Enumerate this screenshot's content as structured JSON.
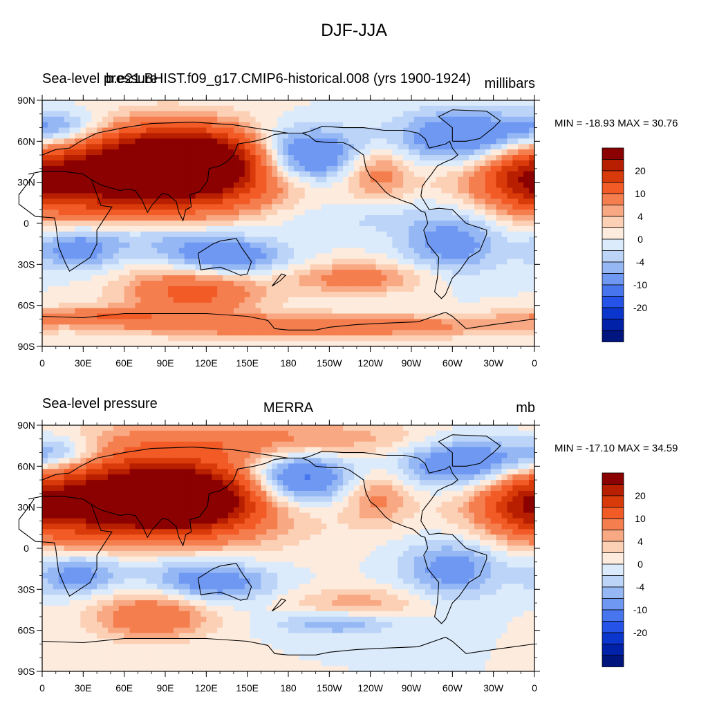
{
  "main_title": "DJF-JJA",
  "panels": [
    {
      "left_title": "Sea-level pressure",
      "center_title": "b.e21.BHIST.f09_g17.CMIP6-historical.008 (yrs 1900-1924)",
      "units": "millibars",
      "min_max": "MIN = -18.93 MAX =  30.76"
    },
    {
      "left_title": "Sea-level pressure",
      "center_title": "MERRA",
      "units": "mb",
      "min_max": "MIN = -17.10 MAX =  34.59"
    }
  ],
  "x_ticks": [
    "0",
    "30E",
    "60E",
    "90E",
    "120E",
    "150E",
    "180",
    "150W",
    "120W",
    "90W",
    "60W",
    "30W",
    "0"
  ],
  "y_ticks": [
    "90N",
    "60N",
    "30N",
    "0",
    "30S",
    "60S",
    "90S"
  ],
  "colorbar": {
    "labels": [
      "20",
      "10",
      "4",
      "0",
      "-4",
      "-10",
      "-20"
    ],
    "colors": [
      "#8B0000",
      "#B81E00",
      "#D93A0A",
      "#F25A26",
      "#F57E4F",
      "#F8A882",
      "#FCD0B5",
      "#FDEBDD",
      "#DCEBFB",
      "#BCD4F8",
      "#95B8F5",
      "#6F98F2",
      "#4675EE",
      "#2553E7",
      "#0B36CE",
      "#0021A8",
      "#00157E"
    ]
  },
  "chart_data": [
    {
      "type": "heatmap",
      "title": "Sea-level pressure",
      "subtitle": "b.e21.BHIST.f09_g17.CMIP6-historical.008 (yrs 1900-1924)",
      "units": "millibars",
      "min": -18.93,
      "max": 30.76,
      "xlim": [
        0,
        360
      ],
      "ylim": [
        -90,
        90
      ],
      "blobs": [
        {
          "lon": 110,
          "lat": 45,
          "value": 30,
          "rlon": 35,
          "rlat": 14
        },
        {
          "lon": 90,
          "lat": 38,
          "value": 20,
          "rlon": 70,
          "rlat": 22
        },
        {
          "lon": 55,
          "lat": 35,
          "value": 12,
          "rlon": 60,
          "rlat": 20
        },
        {
          "lon": 15,
          "lat": 30,
          "value": 8,
          "rlon": 30,
          "rlat": 12
        },
        {
          "lon": 245,
          "lat": 38,
          "value": 8,
          "rlon": 18,
          "rlat": 14
        },
        {
          "lon": 350,
          "lat": 30,
          "value": 7,
          "rlon": 18,
          "rlat": 14
        },
        {
          "lon": 185,
          "lat": 48,
          "value": -18,
          "rlon": 35,
          "rlat": 15
        },
        {
          "lon": 310,
          "lat": 62,
          "value": -12,
          "rlon": 35,
          "rlat": 14
        },
        {
          "lon": 15,
          "lat": 68,
          "value": -9,
          "rlon": 25,
          "rlat": 10
        },
        {
          "lon": 135,
          "lat": -25,
          "value": -10,
          "rlon": 30,
          "rlat": 10
        },
        {
          "lon": 25,
          "lat": -20,
          "value": -8,
          "rlon": 20,
          "rlat": 10
        },
        {
          "lon": 300,
          "lat": -15,
          "value": -8,
          "rlon": 25,
          "rlat": 15
        },
        {
          "lon": 110,
          "lat": -50,
          "value": 12,
          "rlon": 35,
          "rlat": 12
        },
        {
          "lon": 230,
          "lat": -40,
          "value": 8,
          "rlon": 35,
          "rlat": 8
        },
        {
          "lon": 200,
          "lat": -75,
          "value": 10,
          "rlon": 100,
          "rlat": 6
        },
        {
          "lon": 40,
          "lat": -68,
          "value": 8,
          "rlon": 40,
          "rlat": 5
        },
        {
          "lon": 80,
          "lat": -10,
          "value": -5,
          "rlon": 40,
          "rlat": 10
        },
        {
          "lon": 220,
          "lat": 5,
          "value": -3,
          "rlon": 60,
          "rlat": 10
        }
      ]
    },
    {
      "type": "heatmap",
      "title": "Sea-level pressure",
      "subtitle": "MERRA",
      "units": "mb",
      "min": -17.1,
      "max": 34.59,
      "xlim": [
        0,
        360
      ],
      "ylim": [
        -90,
        90
      ],
      "blobs": [
        {
          "lon": 100,
          "lat": 35,
          "value": 30,
          "rlon": 30,
          "rlat": 12
        },
        {
          "lon": 85,
          "lat": 40,
          "value": 20,
          "rlon": 65,
          "rlat": 24
        },
        {
          "lon": 55,
          "lat": 35,
          "value": 12,
          "rlon": 60,
          "rlat": 20
        },
        {
          "lon": 15,
          "lat": 30,
          "value": 8,
          "rlon": 30,
          "rlat": 12
        },
        {
          "lon": 245,
          "lat": 38,
          "value": 7,
          "rlon": 18,
          "rlat": 14
        },
        {
          "lon": 350,
          "lat": 30,
          "value": 7,
          "rlon": 18,
          "rlat": 14
        },
        {
          "lon": 180,
          "lat": 80,
          "value": 6,
          "rlon": 90,
          "rlat": 10
        },
        {
          "lon": 185,
          "lat": 50,
          "value": -16,
          "rlon": 30,
          "rlat": 14
        },
        {
          "lon": 310,
          "lat": 62,
          "value": -12,
          "rlon": 35,
          "rlat": 14
        },
        {
          "lon": 15,
          "lat": 68,
          "value": -9,
          "rlon": 25,
          "rlat": 10
        },
        {
          "lon": 125,
          "lat": -25,
          "value": -9,
          "rlon": 30,
          "rlat": 10
        },
        {
          "lon": 25,
          "lat": -20,
          "value": -8,
          "rlon": 20,
          "rlat": 10
        },
        {
          "lon": 300,
          "lat": -15,
          "value": -8,
          "rlon": 25,
          "rlat": 15
        },
        {
          "lon": 80,
          "lat": -50,
          "value": 10,
          "rlon": 30,
          "rlat": 12
        },
        {
          "lon": 230,
          "lat": -40,
          "value": 5,
          "rlon": 35,
          "rlat": 8
        },
        {
          "lon": 215,
          "lat": -55,
          "value": -6,
          "rlon": 30,
          "rlat": 6
        },
        {
          "lon": 80,
          "lat": -10,
          "value": -3,
          "rlon": 40,
          "rlat": 10
        }
      ]
    }
  ]
}
